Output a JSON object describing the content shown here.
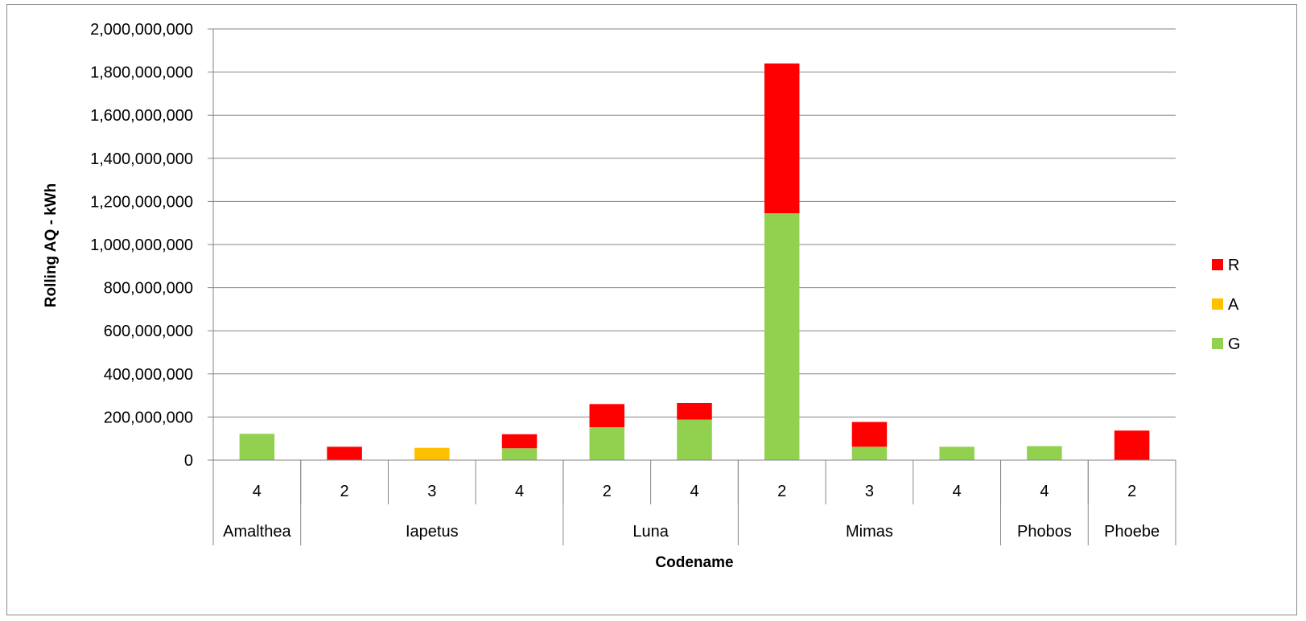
{
  "chart_data": {
    "type": "bar",
    "stacked": true,
    "title": "",
    "xlabel": "Codename",
    "ylabel": "Rolling AQ - kWh",
    "ylim": [
      0,
      2000000000
    ],
    "yticks": [
      0,
      200000000,
      400000000,
      600000000,
      800000000,
      1000000000,
      1200000000,
      1400000000,
      1600000000,
      1800000000,
      2000000000
    ],
    "ytick_labels": [
      "0",
      "200,000,000",
      "400,000,000",
      "600,000,000",
      "800,000,000",
      "1,000,000,000",
      "1,200,000,000",
      "1,400,000,000",
      "1,600,000,000",
      "1,800,000,000",
      "2,000,000,000"
    ],
    "grid": true,
    "legend_position": "right",
    "legend_order": [
      "R",
      "A",
      "G"
    ],
    "groups": [
      {
        "name": "Amalthea",
        "subcategories": [
          "4"
        ]
      },
      {
        "name": "Iapetus",
        "subcategories": [
          "2",
          "3",
          "4"
        ]
      },
      {
        "name": "Luna",
        "subcategories": [
          "2",
          "4"
        ]
      },
      {
        "name": "Mimas",
        "subcategories": [
          "2",
          "3",
          "4"
        ]
      },
      {
        "name": "Phobos",
        "subcategories": [
          "4"
        ]
      },
      {
        "name": "Phoebe",
        "subcategories": [
          "2"
        ]
      }
    ],
    "categories": [
      "Amalthea 4",
      "Iapetus 2",
      "Iapetus 3",
      "Iapetus 4",
      "Luna 2",
      "Luna 4",
      "Mimas 2",
      "Mimas 3",
      "Mimas 4",
      "Phobos 4",
      "Phoebe 2"
    ],
    "series": [
      {
        "name": "G",
        "color": "#92d050",
        "values": [
          122000000,
          0,
          0,
          55000000,
          153000000,
          188000000,
          1145000000,
          62000000,
          62000000,
          65000000,
          0
        ]
      },
      {
        "name": "A",
        "color": "#ffc000",
        "values": [
          0,
          0,
          57000000,
          0,
          0,
          0,
          0,
          0,
          0,
          0,
          0
        ]
      },
      {
        "name": "R",
        "color": "#ff0000",
        "values": [
          0,
          62000000,
          0,
          65000000,
          107000000,
          77000000,
          695000000,
          115000000,
          0,
          0,
          137000000
        ]
      }
    ]
  }
}
